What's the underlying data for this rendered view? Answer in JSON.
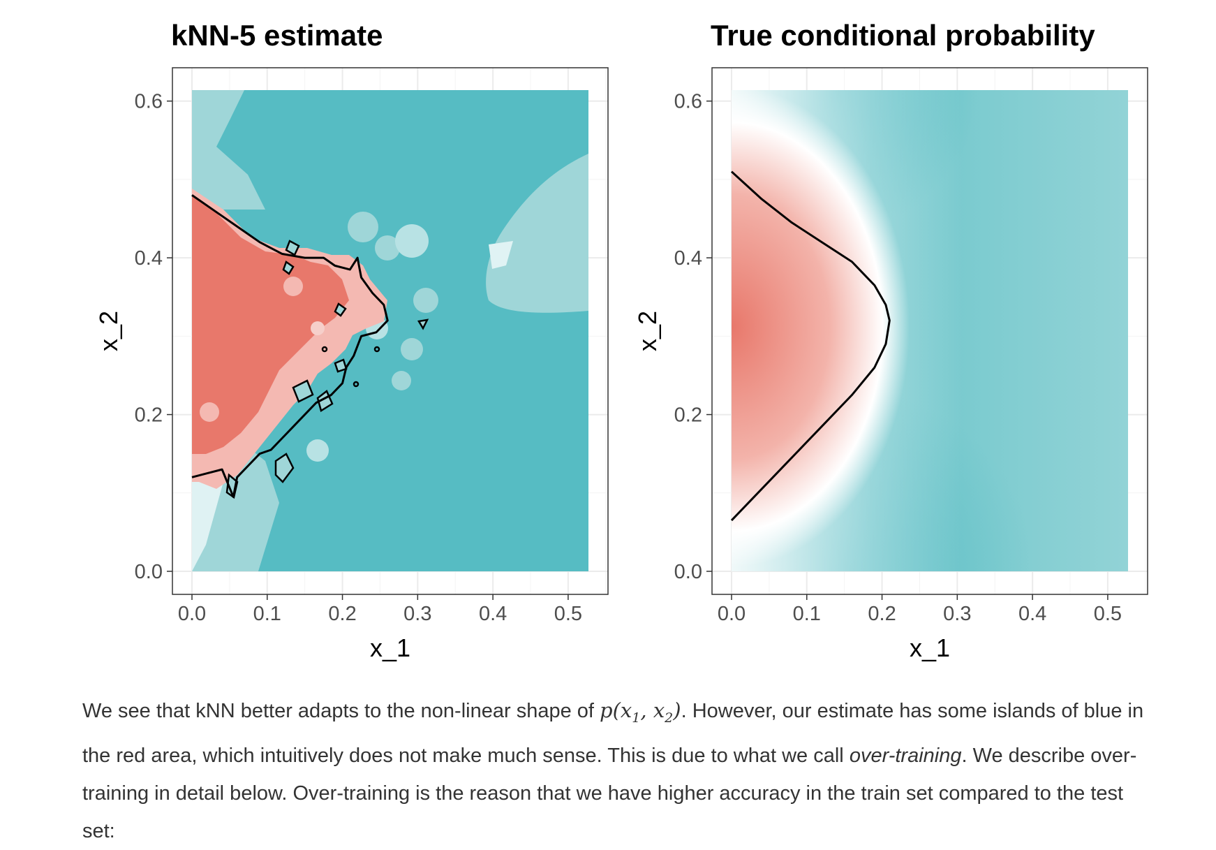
{
  "chart_data": [
    {
      "type": "heatmap",
      "title": "kNN-5 estimate",
      "xlabel": "x_1",
      "ylabel": "x_2",
      "xlim": [
        0.0,
        0.527
      ],
      "ylim": [
        0.0,
        0.614
      ],
      "x_ticks": [
        "0.0",
        "0.1",
        "0.2",
        "0.3",
        "0.4",
        "0.5"
      ],
      "y_ticks": [
        "0.0",
        "0.2",
        "0.4",
        "0.6"
      ],
      "grid": true,
      "colors": {
        "high": "#e8786b",
        "mid": "#ffffff",
        "low": "#56bcc3"
      },
      "decision_boundary": [
        [
          0.0,
          0.48
        ],
        [
          0.03,
          0.46
        ],
        [
          0.06,
          0.44
        ],
        [
          0.09,
          0.42
        ],
        [
          0.12,
          0.405
        ],
        [
          0.15,
          0.4
        ],
        [
          0.175,
          0.4
        ],
        [
          0.19,
          0.39
        ],
        [
          0.21,
          0.385
        ],
        [
          0.22,
          0.4
        ],
        [
          0.225,
          0.375
        ],
        [
          0.24,
          0.355
        ],
        [
          0.255,
          0.34
        ],
        [
          0.26,
          0.32
        ],
        [
          0.245,
          0.305
        ],
        [
          0.225,
          0.3
        ],
        [
          0.215,
          0.275
        ],
        [
          0.205,
          0.26
        ],
        [
          0.2,
          0.24
        ],
        [
          0.185,
          0.225
        ],
        [
          0.165,
          0.215
        ],
        [
          0.15,
          0.2
        ],
        [
          0.135,
          0.185
        ],
        [
          0.12,
          0.17
        ],
        [
          0.105,
          0.155
        ],
        [
          0.09,
          0.15
        ],
        [
          0.075,
          0.135
        ],
        [
          0.06,
          0.12
        ],
        [
          0.055,
          0.095
        ],
        [
          0.04,
          0.13
        ],
        [
          0.02,
          0.125
        ],
        [
          0.0,
          0.12
        ]
      ]
    },
    {
      "type": "heatmap",
      "title": "True conditional probability",
      "xlabel": "x_1",
      "ylabel": "x_2",
      "xlim": [
        0.0,
        0.527
      ],
      "ylim": [
        0.0,
        0.614
      ],
      "x_ticks": [
        "0.0",
        "0.1",
        "0.2",
        "0.3",
        "0.4",
        "0.5"
      ],
      "y_ticks": [
        "0.0",
        "0.2",
        "0.4",
        "0.6"
      ],
      "grid": true,
      "colors": {
        "high": "#e8786b",
        "mid": "#ffffff",
        "low": "#56bcc3"
      },
      "decision_boundary": [
        [
          0.0,
          0.51
        ],
        [
          0.04,
          0.475
        ],
        [
          0.08,
          0.445
        ],
        [
          0.12,
          0.42
        ],
        [
          0.16,
          0.395
        ],
        [
          0.19,
          0.365
        ],
        [
          0.205,
          0.34
        ],
        [
          0.21,
          0.32
        ],
        [
          0.205,
          0.29
        ],
        [
          0.19,
          0.26
        ],
        [
          0.16,
          0.225
        ],
        [
          0.12,
          0.185
        ],
        [
          0.08,
          0.145
        ],
        [
          0.04,
          0.105
        ],
        [
          0.0,
          0.065
        ]
      ]
    }
  ],
  "caption": {
    "part1": "We see that kNN better adapts to the non-linear shape of ",
    "math_p": "p",
    "math_x": "x",
    "sub1": "1",
    "sub2": "2",
    "part2": ". However, our estimate has some islands of blue in the red area, which intuitively does not make much sense. This is due to what we call ",
    "emph": "over-training",
    "part3": ". We describe over-training in detail below. Over-training is the reason that we have higher accuracy in the train set compared to the test set:"
  }
}
